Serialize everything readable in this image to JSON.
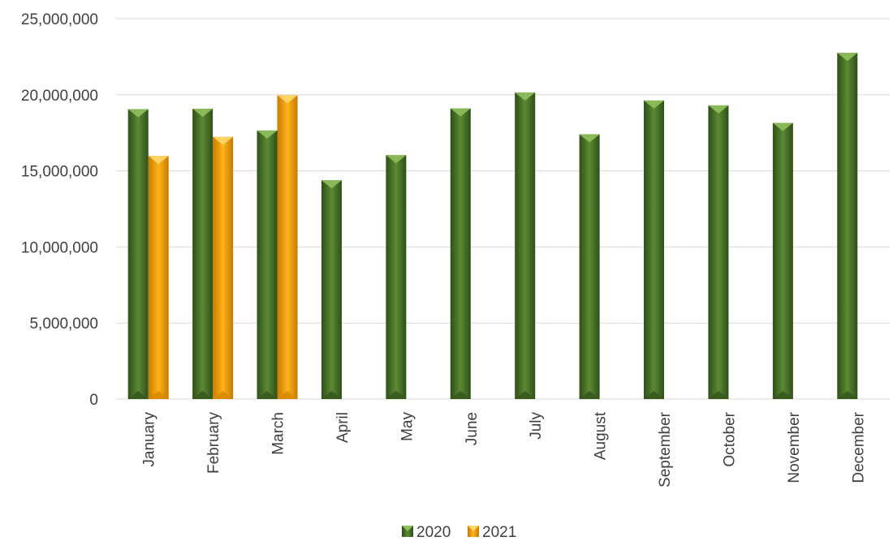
{
  "chart_data": {
    "type": "bar",
    "categories": [
      "January",
      "February",
      "March",
      "April",
      "May",
      "June",
      "July",
      "August",
      "September",
      "October",
      "November",
      "December"
    ],
    "series": [
      {
        "name": "2020",
        "color": "#4f7a2c",
        "values": [
          19050000,
          19080000,
          17650000,
          14380000,
          16030000,
          19100000,
          20150000,
          17400000,
          19620000,
          19300000,
          18150000,
          22750000
        ]
      },
      {
        "name": "2021",
        "color": "#f2a000",
        "values": [
          15980000,
          17230000,
          19970000,
          null,
          null,
          null,
          null,
          null,
          null,
          null,
          null,
          null
        ]
      }
    ],
    "yticks": [
      "0",
      "5,000,000",
      "10,000,000",
      "15,000,000",
      "20,000,000",
      "25,000,000"
    ],
    "ylim": [
      0,
      25000000
    ],
    "grid": true,
    "legend_position": "bottom",
    "title": "",
    "xlabel": "",
    "ylabel": ""
  }
}
